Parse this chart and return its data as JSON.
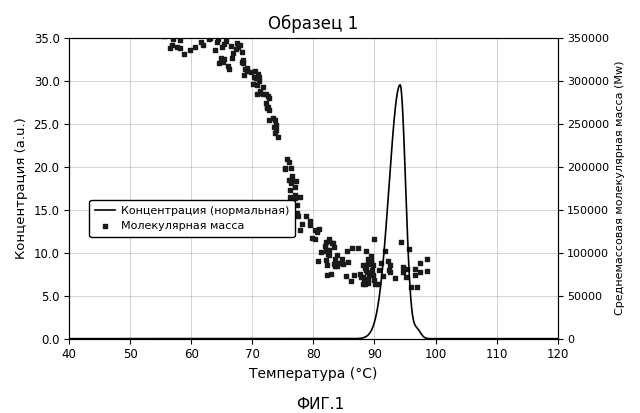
{
  "title": "Образец 1",
  "xlabel": "Температура (°C)",
  "ylabel_left": "Концентрация (a.u.)",
  "ylabel_right": "Среднемассовая молекулярная масса (Mw)",
  "figcaption": "ФИГ.1",
  "xlim": [
    40,
    120
  ],
  "ylim_left": [
    0.0,
    35.0
  ],
  "ylim_right": [
    0,
    350000
  ],
  "xticks": [
    40,
    50,
    60,
    70,
    80,
    90,
    100,
    110,
    120
  ],
  "yticks_left": [
    0.0,
    5.0,
    10.0,
    15.0,
    20.0,
    25.0,
    30.0,
    35.0
  ],
  "yticks_right": [
    0,
    50000,
    100000,
    150000,
    200000,
    250000,
    300000,
    350000
  ],
  "ytick_labels_right": [
    "0",
    "50000",
    "100000",
    "150000",
    "200000",
    "250000",
    "300000",
    "350000"
  ],
  "legend_conc": "Концентрация (нормальная)",
  "legend_mw": "Молекулярная масса",
  "bg_color": "#ffffff",
  "line_color": "#000000",
  "scatter_color": "#1a1a1a",
  "grid_color": "#888888"
}
